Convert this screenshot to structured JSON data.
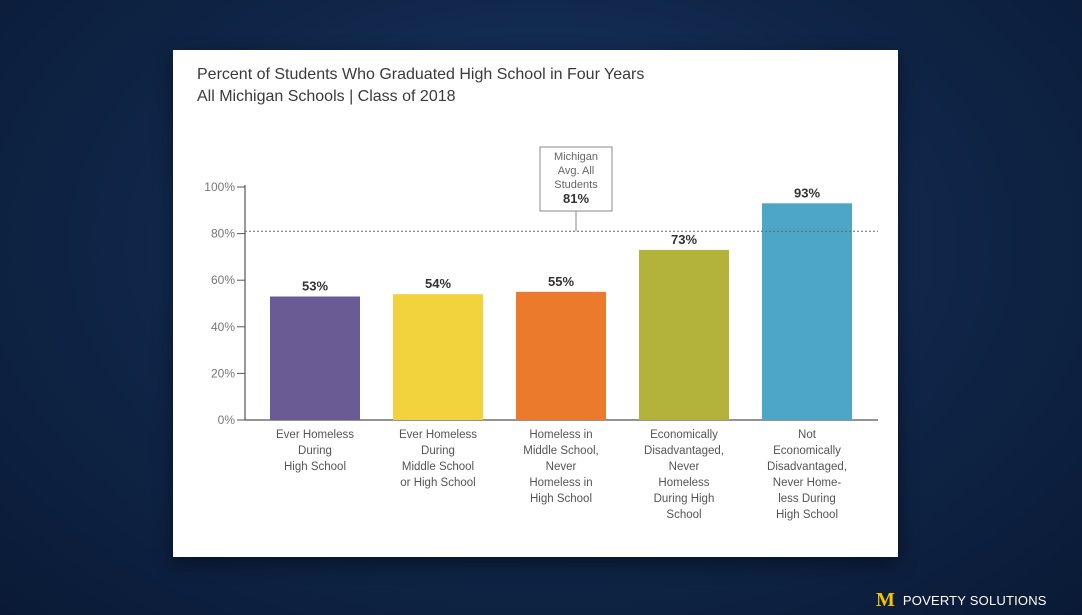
{
  "brand": {
    "logo_text": "M",
    "name": "POVERTY SOLUTIONS"
  },
  "chart_data": {
    "type": "bar",
    "title": "Percent of Students Who Graduated High School in Four Years",
    "subtitle": "All  Michigan Schools  |  Class of 2018",
    "categories": [
      [
        "Ever Homeless",
        "During",
        "High School"
      ],
      [
        "Ever Homeless",
        "During",
        "Middle School",
        "or High School"
      ],
      [
        "Homeless in",
        "Middle School,",
        "Never",
        "Homeless in",
        "High School"
      ],
      [
        "Economically",
        "Disadvantaged,",
        "Never",
        "Homeless",
        "During High",
        "School"
      ],
      [
        "Not",
        "Economically",
        "Disadvantaged,",
        "Never Home-",
        "less During",
        "High School"
      ]
    ],
    "values": [
      53,
      54,
      55,
      73,
      93
    ],
    "value_labels": [
      "53%",
      "54%",
      "55%",
      "73%",
      "93%"
    ],
    "colors": [
      "#6b5b95",
      "#f2d23d",
      "#ec7a2c",
      "#b3b33b",
      "#4ea6c7"
    ],
    "ylim": [
      0,
      100
    ],
    "yticks": [
      0,
      20,
      40,
      60,
      80,
      100
    ],
    "ytick_labels": [
      "0%",
      "20%",
      "40%",
      "60%",
      "80%",
      "100%"
    ],
    "grid": false,
    "reference_line": {
      "value": 81,
      "label_lines": [
        "Michigan",
        "Avg. All",
        "Students"
      ],
      "value_label": "81%"
    }
  }
}
